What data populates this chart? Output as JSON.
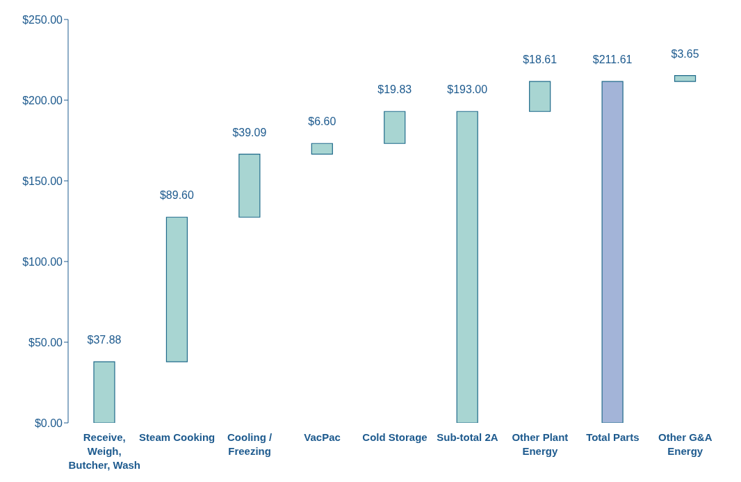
{
  "chart_data": {
    "type": "bar",
    "categories": [
      "Receive, Weigh, Butcher, Wash",
      "Steam Cooking",
      "Cooling / Freezing",
      "VacPac",
      "Cold Storage",
      "Sub-total 2A",
      "Other Plant Energy",
      "Total Parts",
      "Other G&A Energy"
    ],
    "base": [
      0,
      37.88,
      127.48,
      166.57,
      173.17,
      0,
      193.0,
      0,
      211.61
    ],
    "values": [
      37.88,
      89.6,
      39.09,
      6.6,
      19.83,
      193.0,
      18.61,
      211.61,
      3.65
    ],
    "colors": [
      "#a8d5d2",
      "#a8d5d2",
      "#a8d5d2",
      "#a8d5d2",
      "#a8d5d2",
      "#a8d5d2",
      "#a8d5d2",
      "#a3b4d8",
      "#a8d5d2"
    ],
    "value_labels": [
      "$37.88",
      "$89.60",
      "$39.09",
      "$6.60",
      "$19.83",
      "$193.00",
      "$18.61",
      "$211.61",
      "$3.65"
    ],
    "ylim": [
      0,
      250
    ],
    "yticks": [
      {
        "value": 0,
        "label": "$0.00"
      },
      {
        "value": 50,
        "label": "$50.00"
      },
      {
        "value": 100,
        "label": "$100.00"
      },
      {
        "value": 150,
        "label": "$150.00"
      },
      {
        "value": 200,
        "label": "$200.00"
      },
      {
        "value": 250,
        "label": "$250.00"
      }
    ],
    "grid": false,
    "legend": false
  }
}
